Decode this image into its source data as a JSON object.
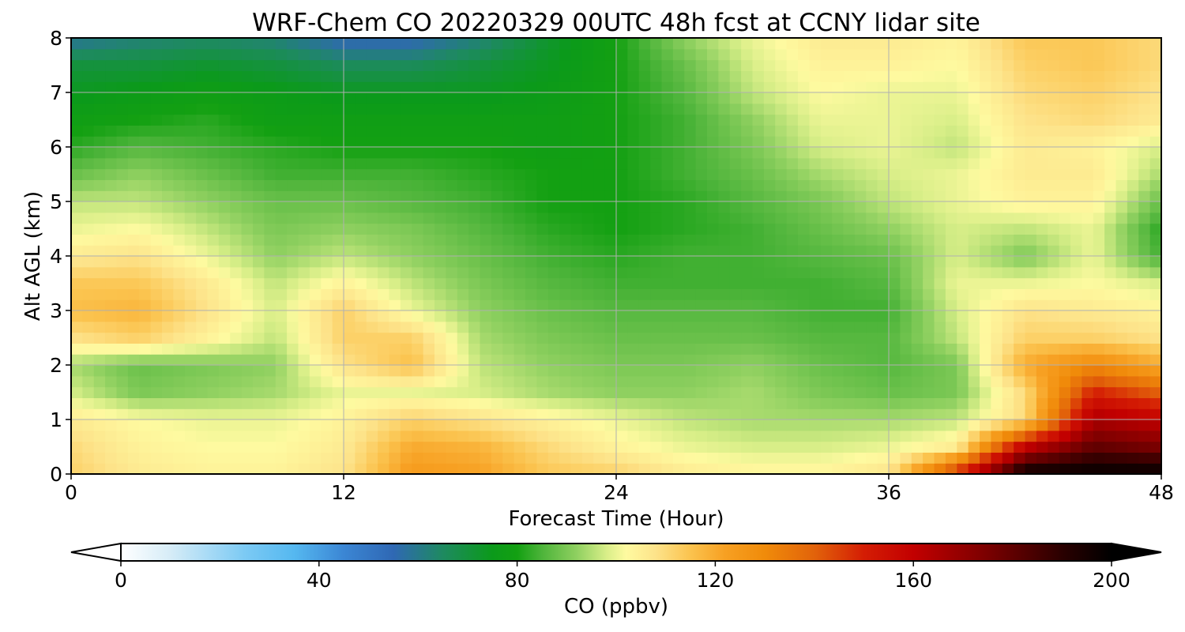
{
  "chart_data": {
    "type": "heatmap",
    "title": "WRF-Chem CO  20220329 00UTC 48h fcst at CCNY lidar site",
    "xlabel": "Forecast Time (Hour)",
    "ylabel": "Alt AGL (km)",
    "xlim": [
      0,
      48
    ],
    "ylim": [
      0,
      8
    ],
    "x_ticks": [
      "0",
      "12",
      "24",
      "36",
      "48"
    ],
    "y_ticks": [
      "0",
      "1",
      "2",
      "3",
      "4",
      "5",
      "6",
      "7",
      "8"
    ],
    "grid": true,
    "colorbar": {
      "label": "CO  (ppbv)",
      "range": [
        0,
        200
      ],
      "extend": "both",
      "ticks": [
        "0",
        "40",
        "80",
        "120",
        "160",
        "200"
      ]
    },
    "x": [
      0,
      3,
      6,
      9,
      12,
      15,
      18,
      21,
      24,
      27,
      30,
      33,
      36,
      39,
      42,
      45,
      48
    ],
    "y": [
      0,
      0.5,
      1,
      1.5,
      2,
      2.5,
      3,
      3.5,
      4,
      4.5,
      5,
      5.5,
      6,
      6.5,
      7,
      7.5,
      8
    ],
    "z": [
      [
        112,
        106,
        104,
        104,
        108,
        124,
        122,
        114,
        112,
        106,
        104,
        104,
        108,
        150,
        200,
        200,
        200
      ],
      [
        110,
        104,
        102,
        102,
        106,
        120,
        118,
        110,
        104,
        100,
        98,
        98,
        100,
        106,
        160,
        180,
        175
      ],
      [
        106,
        102,
        100,
        100,
        104,
        112,
        108,
        104,
        100,
        96,
        94,
        94,
        94,
        96,
        110,
        165,
        160
      ],
      [
        98,
        90,
        92,
        94,
        100,
        100,
        98,
        94,
        92,
        92,
        94,
        90,
        88,
        90,
        110,
        150,
        140
      ],
      [
        94,
        88,
        90,
        92,
        108,
        116,
        96,
        92,
        90,
        90,
        92,
        88,
        86,
        90,
        120,
        130,
        120
      ],
      [
        108,
        112,
        104,
        96,
        112,
        112,
        94,
        90,
        88,
        88,
        88,
        86,
        86,
        96,
        112,
        112,
        108
      ],
      [
        116,
        118,
        108,
        98,
        112,
        100,
        92,
        88,
        86,
        86,
        86,
        84,
        84,
        98,
        108,
        106,
        104
      ],
      [
        114,
        114,
        106,
        96,
        104,
        96,
        90,
        86,
        84,
        84,
        84,
        84,
        86,
        100,
        100,
        102,
        98
      ],
      [
        106,
        108,
        100,
        92,
        96,
        92,
        88,
        84,
        82,
        84,
        84,
        86,
        88,
        98,
        90,
        100,
        84
      ],
      [
        100,
        102,
        96,
        90,
        92,
        90,
        86,
        82,
        80,
        82,
        84,
        88,
        92,
        98,
        96,
        100,
        82
      ],
      [
        96,
        96,
        92,
        88,
        88,
        86,
        84,
        80,
        80,
        82,
        86,
        90,
        96,
        100,
        104,
        104,
        88
      ],
      [
        88,
        92,
        88,
        84,
        84,
        84,
        82,
        80,
        80,
        84,
        88,
        94,
        98,
        100,
        106,
        106,
        94
      ],
      [
        82,
        86,
        84,
        82,
        80,
        80,
        80,
        78,
        80,
        84,
        90,
        98,
        100,
        96,
        106,
        104,
        98
      ],
      [
        78,
        80,
        82,
        78,
        78,
        78,
        78,
        78,
        80,
        84,
        92,
        100,
        100,
        98,
        108,
        110,
        106
      ],
      [
        74,
        76,
        78,
        76,
        74,
        74,
        74,
        76,
        80,
        86,
        96,
        102,
        100,
        100,
        110,
        112,
        108
      ],
      [
        70,
        70,
        72,
        70,
        66,
        66,
        70,
        74,
        80,
        88,
        98,
        104,
        104,
        102,
        112,
        114,
        110
      ],
      [
        58,
        62,
        64,
        62,
        54,
        54,
        62,
        72,
        80,
        92,
        100,
        106,
        106,
        104,
        114,
        114,
        110
      ]
    ]
  }
}
